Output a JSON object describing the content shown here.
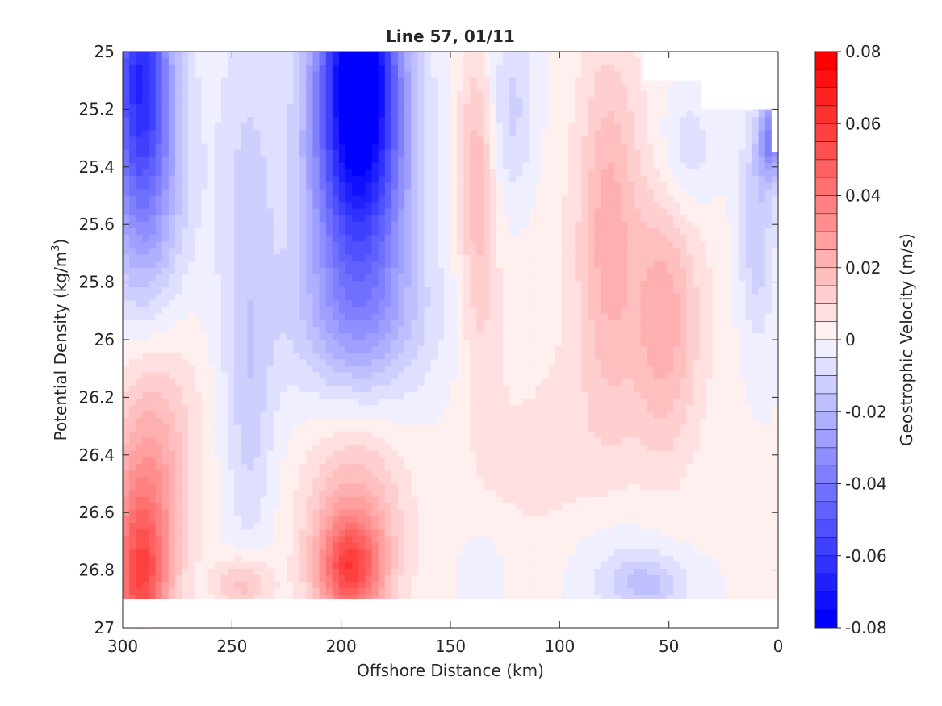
{
  "chart_data": {
    "type": "heatmap",
    "title": "Line 57, 01/11",
    "xlabel": "Offshore Distance (km)",
    "ylabel": "Potential Density (kg/m",
    "ylabel_sup": "3",
    "ylabel_close": ")",
    "xlim": [
      300,
      0
    ],
    "ylim": [
      25,
      27
    ],
    "x_reversed": true,
    "y_reversed": true,
    "x_ticks": [
      "300",
      "250",
      "200",
      "150",
      "100",
      "50",
      "0"
    ],
    "y_ticks": [
      "25",
      "25.2",
      "25.4",
      "25.6",
      "25.8",
      "26",
      "26.2",
      "26.4",
      "26.6",
      "26.8",
      "27"
    ],
    "colorbar": {
      "label": "Geostrophic Velocity (m/s)",
      "range": [
        -0.08,
        0.08
      ],
      "step": 0.005,
      "ticks": [
        "0.08",
        "0.06",
        "0.04",
        "0.02",
        "0",
        "-0.02",
        "-0.04",
        "-0.06",
        "-0.08"
      ],
      "colormap": "blue-white-red",
      "negative_color": "#0000ff",
      "positive_color": "#ff0000"
    },
    "features": [
      {
        "x": 292,
        "y": 25.0,
        "value": -0.045,
        "sx": 9,
        "sy": 0.32
      },
      {
        "x": 290,
        "y": 25.4,
        "value": -0.032,
        "sx": 13,
        "sy": 0.38
      },
      {
        "x": 243,
        "y": 25.6,
        "value": -0.012,
        "sx": 10,
        "sy": 0.55
      },
      {
        "x": 242,
        "y": 26.3,
        "value": -0.008,
        "sx": 7,
        "sy": 0.3
      },
      {
        "x": 192,
        "y": 25.0,
        "value": -0.075,
        "sx": 13,
        "sy": 0.33
      },
      {
        "x": 192,
        "y": 25.5,
        "value": -0.045,
        "sx": 17,
        "sy": 0.35
      },
      {
        "x": 192,
        "y": 25.95,
        "value": -0.014,
        "sx": 24,
        "sy": 0.18
      },
      {
        "x": 122,
        "y": 25.2,
        "value": -0.012,
        "sx": 8,
        "sy": 0.22
      },
      {
        "x": 42,
        "y": 25.35,
        "value": -0.012,
        "sx": 10,
        "sy": 0.17
      },
      {
        "x": 3,
        "y": 25.3,
        "value": -0.035,
        "sx": 4,
        "sy": 0.1
      },
      {
        "x": 10,
        "y": 25.6,
        "value": -0.016,
        "sx": 6,
        "sy": 0.28
      },
      {
        "x": 138,
        "y": 25.4,
        "value": 0.018,
        "sx": 6,
        "sy": 0.32
      },
      {
        "x": 135,
        "y": 26.0,
        "value": 0.007,
        "sx": 7,
        "sy": 0.3
      },
      {
        "x": 78,
        "y": 25.6,
        "value": 0.016,
        "sx": 9,
        "sy": 0.45
      },
      {
        "x": 52,
        "y": 25.95,
        "value": 0.017,
        "sx": 10,
        "sy": 0.3
      },
      {
        "x": 65,
        "y": 25.8,
        "value": 0.008,
        "sx": 28,
        "sy": 0.55
      },
      {
        "x": 292,
        "y": 26.85,
        "value": 0.045,
        "sx": 9,
        "sy": 0.22
      },
      {
        "x": 288,
        "y": 26.5,
        "value": 0.022,
        "sx": 13,
        "sy": 0.3
      },
      {
        "x": 283,
        "y": 26.2,
        "value": 0.006,
        "sx": 17,
        "sy": 0.3
      },
      {
        "x": 196,
        "y": 26.8,
        "value": 0.04,
        "sx": 10,
        "sy": 0.12
      },
      {
        "x": 194,
        "y": 26.65,
        "value": 0.024,
        "sx": 16,
        "sy": 0.25
      },
      {
        "x": 245,
        "y": 26.85,
        "value": 0.018,
        "sx": 9,
        "sy": 0.07
      },
      {
        "x": 110,
        "y": 26.45,
        "value": 0.006,
        "sx": 22,
        "sy": 0.25
      },
      {
        "x": 135,
        "y": 26.8,
        "value": -0.006,
        "sx": 6,
        "sy": 0.1
      },
      {
        "x": 60,
        "y": 26.85,
        "value": -0.016,
        "sx": 13,
        "sy": 0.07
      },
      {
        "x": 75,
        "y": 26.75,
        "value": -0.006,
        "sx": 18,
        "sy": 0.14
      }
    ],
    "mask_high_density_below": 26.9,
    "mask_top_right": [
      {
        "x_min": 0,
        "x_max": 62,
        "y_max": 25.1
      },
      {
        "x_min": 0,
        "x_max": 35,
        "y_max": 25.2
      },
      {
        "x_min": 0,
        "x_max": 3,
        "y_max": 25.35
      }
    ]
  }
}
